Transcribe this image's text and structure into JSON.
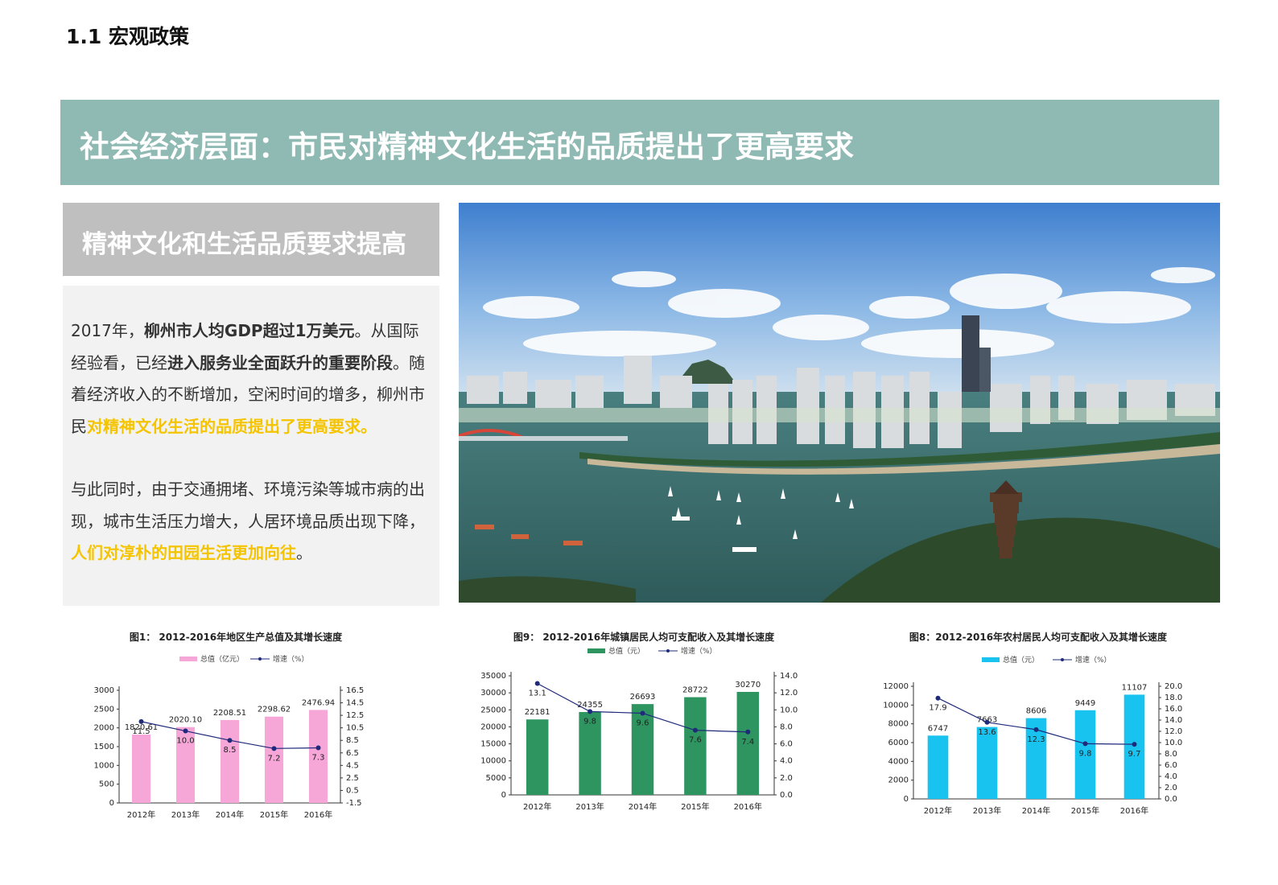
{
  "section_title": "1.1 宏观政策",
  "banner_title": "社会经济层面：市民对精神文化生活的品质提出了更高要求",
  "subhead_title": "精神文化和生活品质要求提高",
  "paragraph1": {
    "s1": "2017年，",
    "s2": "柳州市人均GDP超过1万美元",
    "s3": "。从国际经验看，已经",
    "s4": "进入服务业全面跃升的重要阶段",
    "s5": "。随着经济收入的不断增加，空闲时间的增多，柳州市民",
    "s6": "对精神文化生活的品质提出了更高要求。"
  },
  "paragraph2": {
    "s1": "与此同时，由于交通拥堵、环境污染等城市病的出现，城市生活压力增大，人居环境品质出现下降，",
    "s2": "人们对淳朴的田园生活更加向往",
    "s3": "。"
  },
  "photo": {
    "icon": "city-skyline-photo"
  },
  "chart_data": [
    {
      "type": "bar",
      "title": "图1：  2012-2016年地区生产总值及其增长速度",
      "categories": [
        "2012年",
        "2013年",
        "2014年",
        "2015年",
        "2016年"
      ],
      "series": [
        {
          "name": "总值（亿元）",
          "type": "bar",
          "axis": "left",
          "values": [
            1820.61,
            2020.1,
            2208.51,
            2298.62,
            2476.94
          ],
          "labels": [
            "1820.61",
            "2020.10",
            "2208.51",
            "2298.62",
            "2476.94"
          ]
        },
        {
          "name": "增速（%）",
          "type": "line",
          "axis": "right",
          "values": [
            11.5,
            10.0,
            8.5,
            7.2,
            7.3
          ],
          "labels": [
            "11.5",
            "10.0",
            "8.5",
            "7.2",
            "7.3"
          ]
        }
      ],
      "y_left": {
        "ticks": [
          "0",
          "500",
          "1000",
          "1500",
          "2000",
          "2500",
          "3000"
        ],
        "range": [
          0,
          3000
        ]
      },
      "y_right": {
        "ticks": [
          "-1.5",
          "0.5",
          "2.5",
          "4.5",
          "6.5",
          "8.5",
          "10.5",
          "12.5",
          "14.5",
          "16.5"
        ],
        "range": [
          -1.5,
          16.5
        ]
      },
      "colors": {
        "bar": "#f7a6d8",
        "line": "#1f2a7a"
      },
      "legend": "top"
    },
    {
      "type": "bar",
      "title": "图9：  2012-2016年城镇居民人均可支配收入及其增长速度",
      "categories": [
        "2012年",
        "2013年",
        "2014年",
        "2015年",
        "2016年"
      ],
      "series": [
        {
          "name": "总值（元）",
          "type": "bar",
          "axis": "left",
          "values": [
            22181,
            24355,
            26693,
            28722,
            30270
          ],
          "labels": [
            "22181",
            "24355",
            "26693",
            "28722",
            "30270"
          ]
        },
        {
          "name": "增速（%）",
          "type": "line",
          "axis": "right",
          "values": [
            13.1,
            9.8,
            9.6,
            7.6,
            7.4
          ],
          "labels": [
            "13.1",
            "9.8",
            "9.6",
            "7.6",
            "7.4"
          ]
        }
      ],
      "y_left": {
        "ticks": [
          "0",
          "5000",
          "10000",
          "15000",
          "20000",
          "25000",
          "30000",
          "35000"
        ],
        "range": [
          0,
          35000
        ]
      },
      "y_right": {
        "ticks": [
          "0.0",
          "2.0",
          "4.0",
          "6.0",
          "8.0",
          "10.0",
          "12.0",
          "14.0"
        ],
        "range": [
          0,
          14
        ]
      },
      "colors": {
        "bar": "#2f9560",
        "line": "#1f2a7a"
      },
      "legend": "top"
    },
    {
      "type": "bar",
      "title": "图8：2012-2016年农村居民人均可支配收入及其增长速度",
      "categories": [
        "2012年",
        "2013年",
        "2014年",
        "2015年",
        "2016年"
      ],
      "series": [
        {
          "name": "总值（元）",
          "type": "bar",
          "axis": "left",
          "values": [
            6747,
            7663,
            8606,
            9449,
            11107
          ],
          "labels": [
            "6747",
            "7663",
            "8606",
            "9449",
            "11107"
          ]
        },
        {
          "name": "增速（%）",
          "type": "line",
          "axis": "right",
          "values": [
            17.9,
            13.6,
            12.3,
            9.8,
            9.7
          ],
          "labels": [
            "17.9",
            "13.6",
            "12.3",
            "9.8",
            "9.7"
          ]
        }
      ],
      "y_left": {
        "ticks": [
          "0",
          "2000",
          "4000",
          "6000",
          "8000",
          "10000",
          "12000"
        ],
        "range": [
          0,
          12000
        ]
      },
      "y_right": {
        "ticks": [
          "0.0",
          "2.0",
          "4.0",
          "6.0",
          "8.0",
          "10.0",
          "12.0",
          "14.0",
          "16.0",
          "18.0",
          "20.0"
        ],
        "range": [
          0,
          20
        ]
      },
      "colors": {
        "bar": "#19c3ef",
        "line": "#1f2a7a"
      },
      "legend": "top"
    }
  ]
}
